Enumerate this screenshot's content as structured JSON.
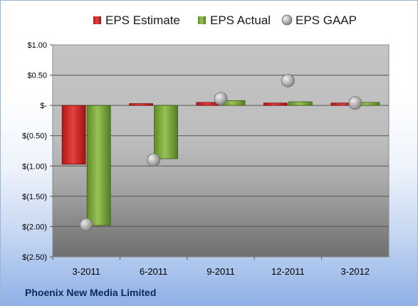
{
  "company": "Phoenix New Media Limited",
  "colors": {
    "estimate": "#cc2020",
    "actual": "#7aa83a",
    "gaap": "#a8a8a8"
  },
  "chart_data": {
    "type": "bar",
    "categories": [
      "3-2011",
      "6-2011",
      "9-2011",
      "12-2011",
      "3-2012"
    ],
    "series": [
      {
        "name": "EPS Estimate",
        "kind": "bar",
        "values": [
          -0.97,
          0.03,
          0.05,
          0.04,
          0.04
        ]
      },
      {
        "name": "EPS Actual",
        "kind": "bar",
        "values": [
          -1.98,
          -0.88,
          0.08,
          0.06,
          0.05
        ]
      },
      {
        "name": "EPS GAAP",
        "kind": "marker",
        "values": [
          -1.97,
          -0.9,
          0.11,
          0.41,
          0.04
        ]
      }
    ],
    "ylim": [
      -2.5,
      1.0
    ],
    "yticks": [
      1.0,
      0.5,
      0,
      -0.5,
      -1.0,
      -1.5,
      -2.0,
      -2.5
    ],
    "ytick_labels": [
      "$1.00",
      "$0.50",
      "$-",
      "$(0.50)",
      "$(1.00)",
      "$(1.50)",
      "$(2.00)",
      "$(2.50)"
    ],
    "grid": true,
    "legend": "top",
    "title": "",
    "xlabel": "",
    "ylabel": ""
  }
}
